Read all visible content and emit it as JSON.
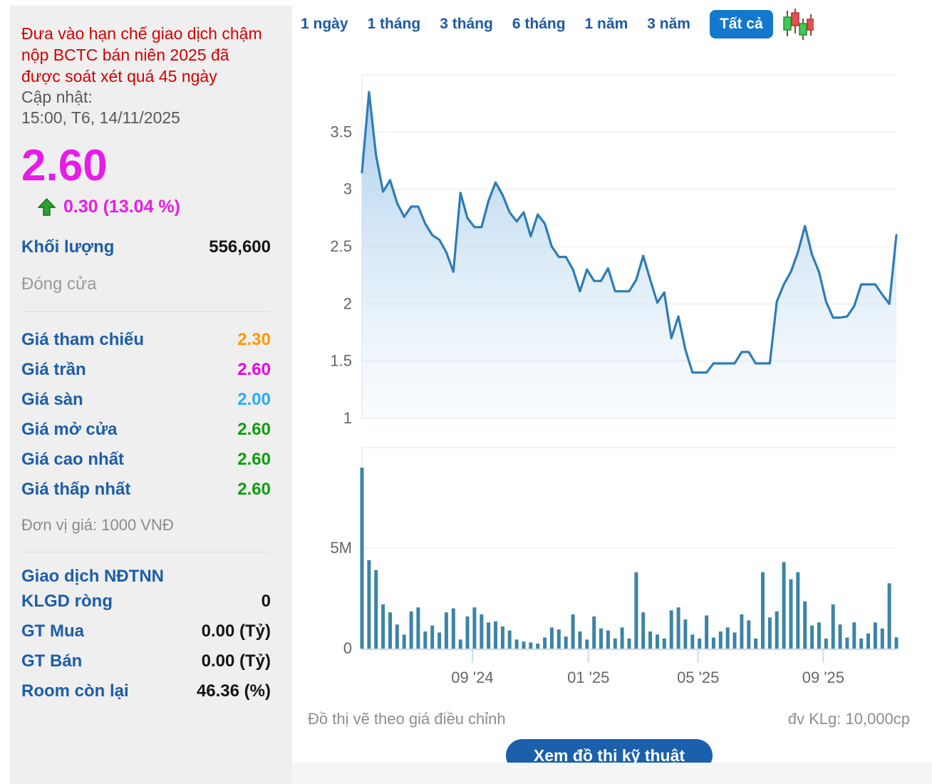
{
  "sidebar": {
    "alert": "Đưa vào hạn chế giao dịch chậm nộp BCTC bán niên 2025 đã được soát xét quá 45 ngày",
    "updated_label": "Cập nhật:",
    "updated_value": "15:00, T6, 14/11/2025",
    "price": "2.60",
    "change": "0.30 (13.04 %)",
    "volume_label": "Khối lượng",
    "volume_value": "556,600",
    "session_label": "Đóng cửa",
    "price_rows": [
      {
        "label": "Giá tham chiếu",
        "value": "2.30",
        "color": "#ff9900"
      },
      {
        "label": "Giá trần",
        "value": "2.60",
        "color": "#ea00ea"
      },
      {
        "label": "Giá sàn",
        "value": "2.00",
        "color": "#2aabf2"
      },
      {
        "label": "Giá mở cửa",
        "value": "2.60",
        "color": "#0ca00c"
      },
      {
        "label": "Giá cao nhất",
        "value": "2.60",
        "color": "#0ca00c"
      },
      {
        "label": "Giá thấp nhất",
        "value": "2.60",
        "color": "#0ca00c"
      }
    ],
    "unit_note": "Đơn vị giá: 1000 VNĐ",
    "foreign_header": "Giao dịch NĐTNN",
    "foreign_rows": [
      {
        "label": "KLGD ròng",
        "value": "0"
      },
      {
        "label": "GT Mua",
        "value": "0.00 (Tỷ)"
      },
      {
        "label": "GT Bán",
        "value": "0.00 (Tỷ)"
      },
      {
        "label": "Room còn lại",
        "value": "46.36 (%)"
      }
    ]
  },
  "toolbar": {
    "tabs": [
      {
        "label": "1 ngày",
        "active": false
      },
      {
        "label": "1 tháng",
        "active": false
      },
      {
        "label": "3 tháng",
        "active": false
      },
      {
        "label": "6 tháng",
        "active": false
      },
      {
        "label": "1 năm",
        "active": false
      },
      {
        "label": "3 năm",
        "active": false
      },
      {
        "label": "Tất cả",
        "active": true
      }
    ],
    "candle_icon": "candlestick-chart-toggle"
  },
  "footer": {
    "note_left": "Đồ thị vẽ theo giá điều chỉnh",
    "note_right": "đv KLg: 10,000cp",
    "button": "Xem đồ thị kỹ thuật"
  },
  "colors": {
    "up_green": "#2fa12f",
    "magenta": "#e81ce8",
    "label_blue": "#1c5ea9",
    "tab_blue": "#1b5aa5",
    "active_tab_bg": "#1478cd",
    "line_blue": "#2e7cb5",
    "bar_teal": "#3c84a6",
    "axis_text": "#666666",
    "grid": "#e7e7e7"
  },
  "chart_data": [
    {
      "type": "area",
      "title": "Giá điều chỉnh (1000 VNĐ)",
      "ylim": [
        1,
        4.0
      ],
      "y_ticks": [
        1,
        1.5,
        2,
        2.5,
        3,
        3.5
      ],
      "line_color": "#2e7cb5",
      "grid": true,
      "values": [
        3.15,
        3.85,
        3.3,
        2.98,
        3.08,
        2.88,
        2.76,
        2.85,
        2.85,
        2.7,
        2.6,
        2.56,
        2.45,
        2.28,
        2.97,
        2.75,
        2.67,
        2.67,
        2.9,
        3.06,
        2.95,
        2.8,
        2.72,
        2.8,
        2.59,
        2.78,
        2.7,
        2.5,
        2.41,
        2.41,
        2.3,
        2.11,
        2.3,
        2.2,
        2.2,
        2.31,
        2.11,
        2.11,
        2.11,
        2.21,
        2.42,
        2.21,
        2.01,
        2.1,
        1.7,
        1.89,
        1.6,
        1.4,
        1.4,
        1.4,
        1.48,
        1.48,
        1.48,
        1.48,
        1.58,
        1.58,
        1.48,
        1.48,
        1.48,
        2.02,
        2.17,
        2.28,
        2.45,
        2.68,
        2.43,
        2.28,
        2.02,
        1.88,
        1.88,
        1.89,
        1.98,
        2.17,
        2.17,
        2.17,
        2.08,
        2.0,
        2.6
      ],
      "x_ticks": [
        {
          "index": 15.7,
          "label": "09 '24"
        },
        {
          "index": 32.2,
          "label": "01 '25"
        },
        {
          "index": 47.8,
          "label": "05 '25"
        },
        {
          "index": 65.6,
          "label": "09 '25"
        }
      ]
    },
    {
      "type": "bar",
      "title": "Khối lượng (đv 10,000cp)",
      "unit": "millions of shares",
      "ylim": [
        0,
        10
      ],
      "y_ticks": [
        {
          "v": 0,
          "label": "0"
        },
        {
          "v": 5,
          "label": "5M"
        }
      ],
      "bar_color": "#3c84a6",
      "values": [
        9.0,
        4.4,
        3.9,
        2.2,
        1.8,
        1.2,
        0.7,
        1.85,
        2.05,
        0.85,
        1.15,
        0.8,
        1.8,
        2.0,
        0.45,
        1.6,
        2.05,
        1.7,
        1.3,
        1.35,
        1.1,
        0.9,
        0.45,
        0.35,
        0.3,
        0.25,
        0.55,
        1.05,
        0.95,
        0.6,
        1.7,
        0.85,
        0.45,
        1.6,
        1.0,
        0.9,
        0.5,
        1.05,
        0.5,
        3.8,
        1.8,
        0.85,
        0.7,
        0.5,
        1.9,
        2.05,
        1.45,
        0.7,
        0.5,
        1.65,
        0.55,
        0.85,
        1.05,
        0.8,
        1.7,
        1.4,
        0.5,
        3.8,
        1.55,
        1.85,
        4.3,
        3.45,
        3.8,
        2.35,
        1.15,
        1.3,
        0.5,
        2.2,
        1.2,
        0.55,
        1.3,
        0.5,
        0.75,
        1.3,
        1.0,
        3.25,
        0.56
      ]
    }
  ]
}
